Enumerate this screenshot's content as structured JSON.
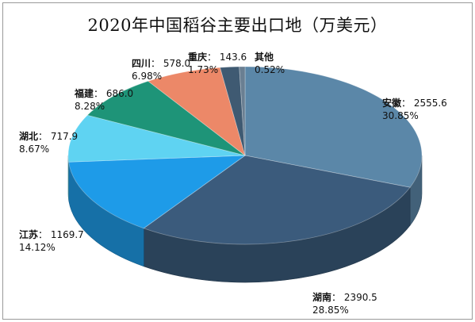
{
  "chart_data": {
    "type": "pie",
    "title": "2020年中国稻谷主要出口地（万美元）",
    "slices": [
      {
        "name": "安徽",
        "value": 2555.6,
        "value_text": "2555.6",
        "percent": "30.85%",
        "color": "#5b87a8"
      },
      {
        "name": "湖南",
        "value": 2390.5,
        "value_text": "2390.5",
        "percent": "28.85%",
        "color": "#3b5b7c"
      },
      {
        "name": "江苏",
        "value": 1169.7,
        "value_text": "1169.7",
        "percent": "14.12%",
        "color": "#1e9be8"
      },
      {
        "name": "湖北",
        "value": 717.9,
        "value_text": "717.9",
        "percent": "8.67%",
        "color": "#5fd3f2"
      },
      {
        "name": "福建",
        "value": 686.0,
        "value_text": "686.0",
        "percent": "8.28%",
        "color": "#1e9478"
      },
      {
        "name": "四川",
        "value": 578.0,
        "value_text": "578.0",
        "percent": "6.98%",
        "color": "#ec8868"
      },
      {
        "name": "重庆",
        "value": 143.6,
        "value_text": "143.6",
        "percent": "1.73%",
        "color": "#3f5a72"
      },
      {
        "name": "其他",
        "value": 43.0,
        "value_text": "",
        "percent": "0.52%",
        "color": "#6a7f92"
      }
    ]
  }
}
